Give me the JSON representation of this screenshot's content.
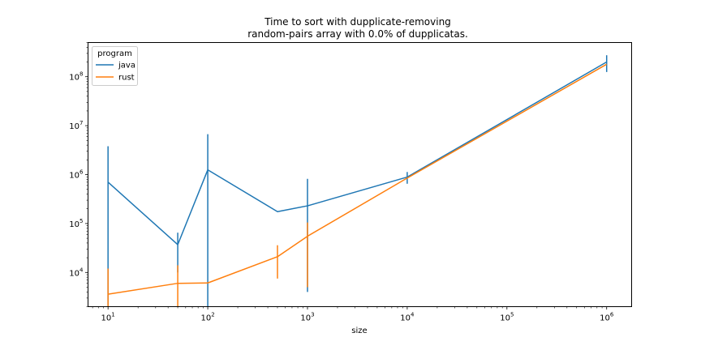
{
  "chart_data": {
    "type": "line",
    "title_lines": [
      "Time to sort with dupplicate-removing",
      "random-pairs array with 0.0% of dupplicatas."
    ],
    "xlabel": "size",
    "ylabel": "",
    "xscale": "log",
    "yscale": "log",
    "xlim": [
      6.3,
      1780000
    ],
    "ylim": [
      2000,
      500000000
    ],
    "x_ticks": [
      {
        "value": 10,
        "base": "10",
        "exp": "1"
      },
      {
        "value": 100,
        "base": "10",
        "exp": "2"
      },
      {
        "value": 1000,
        "base": "10",
        "exp": "3"
      },
      {
        "value": 10000,
        "base": "10",
        "exp": "4"
      },
      {
        "value": 100000,
        "base": "10",
        "exp": "5"
      },
      {
        "value": 1000000,
        "base": "10",
        "exp": "6"
      }
    ],
    "y_ticks": [
      {
        "value": 10000,
        "base": "10",
        "exp": "4"
      },
      {
        "value": 100000,
        "base": "10",
        "exp": "5"
      },
      {
        "value": 1000000,
        "base": "10",
        "exp": "6"
      },
      {
        "value": 10000000,
        "base": "10",
        "exp": "7"
      },
      {
        "value": 100000000,
        "base": "10",
        "exp": "8"
      }
    ],
    "legend": {
      "title": "program",
      "position": "top-left"
    },
    "grid": false,
    "series": [
      {
        "name": "java",
        "color": "#1f77b4",
        "points": [
          {
            "x": 10,
            "y": 700000,
            "lo": 2000,
            "hi": 3800000
          },
          {
            "x": 50,
            "y": 37000,
            "lo": 10000,
            "hi": 65000
          },
          {
            "x": 100,
            "y": 1250000,
            "lo": 2000,
            "hi": 6700000
          },
          {
            "x": 500,
            "y": 175000,
            "lo": 175000,
            "hi": 175000
          },
          {
            "x": 1000,
            "y": 230000,
            "lo": 4000,
            "hi": 820000
          },
          {
            "x": 10000,
            "y": 890000,
            "lo": 650000,
            "hi": 1130000
          },
          {
            "x": 1000000,
            "y": 200000000,
            "lo": 125000000,
            "hi": 275000000
          }
        ]
      },
      {
        "name": "rust",
        "color": "#ff7f0e",
        "points": [
          {
            "x": 10,
            "y": 3600,
            "lo": 2000,
            "hi": 12000
          },
          {
            "x": 50,
            "y": 6000,
            "lo": 2000,
            "hi": 14000
          },
          {
            "x": 100,
            "y": 6100,
            "lo": 6100,
            "hi": 6100
          },
          {
            "x": 500,
            "y": 21000,
            "lo": 7500,
            "hi": 36000
          },
          {
            "x": 1000,
            "y": 55000,
            "lo": 5000,
            "hi": 105000
          },
          {
            "x": 10000,
            "y": 850000,
            "lo": 850000,
            "hi": 850000
          },
          {
            "x": 1000000,
            "y": 180000000,
            "lo": 180000000,
            "hi": 180000000
          }
        ]
      }
    ]
  }
}
